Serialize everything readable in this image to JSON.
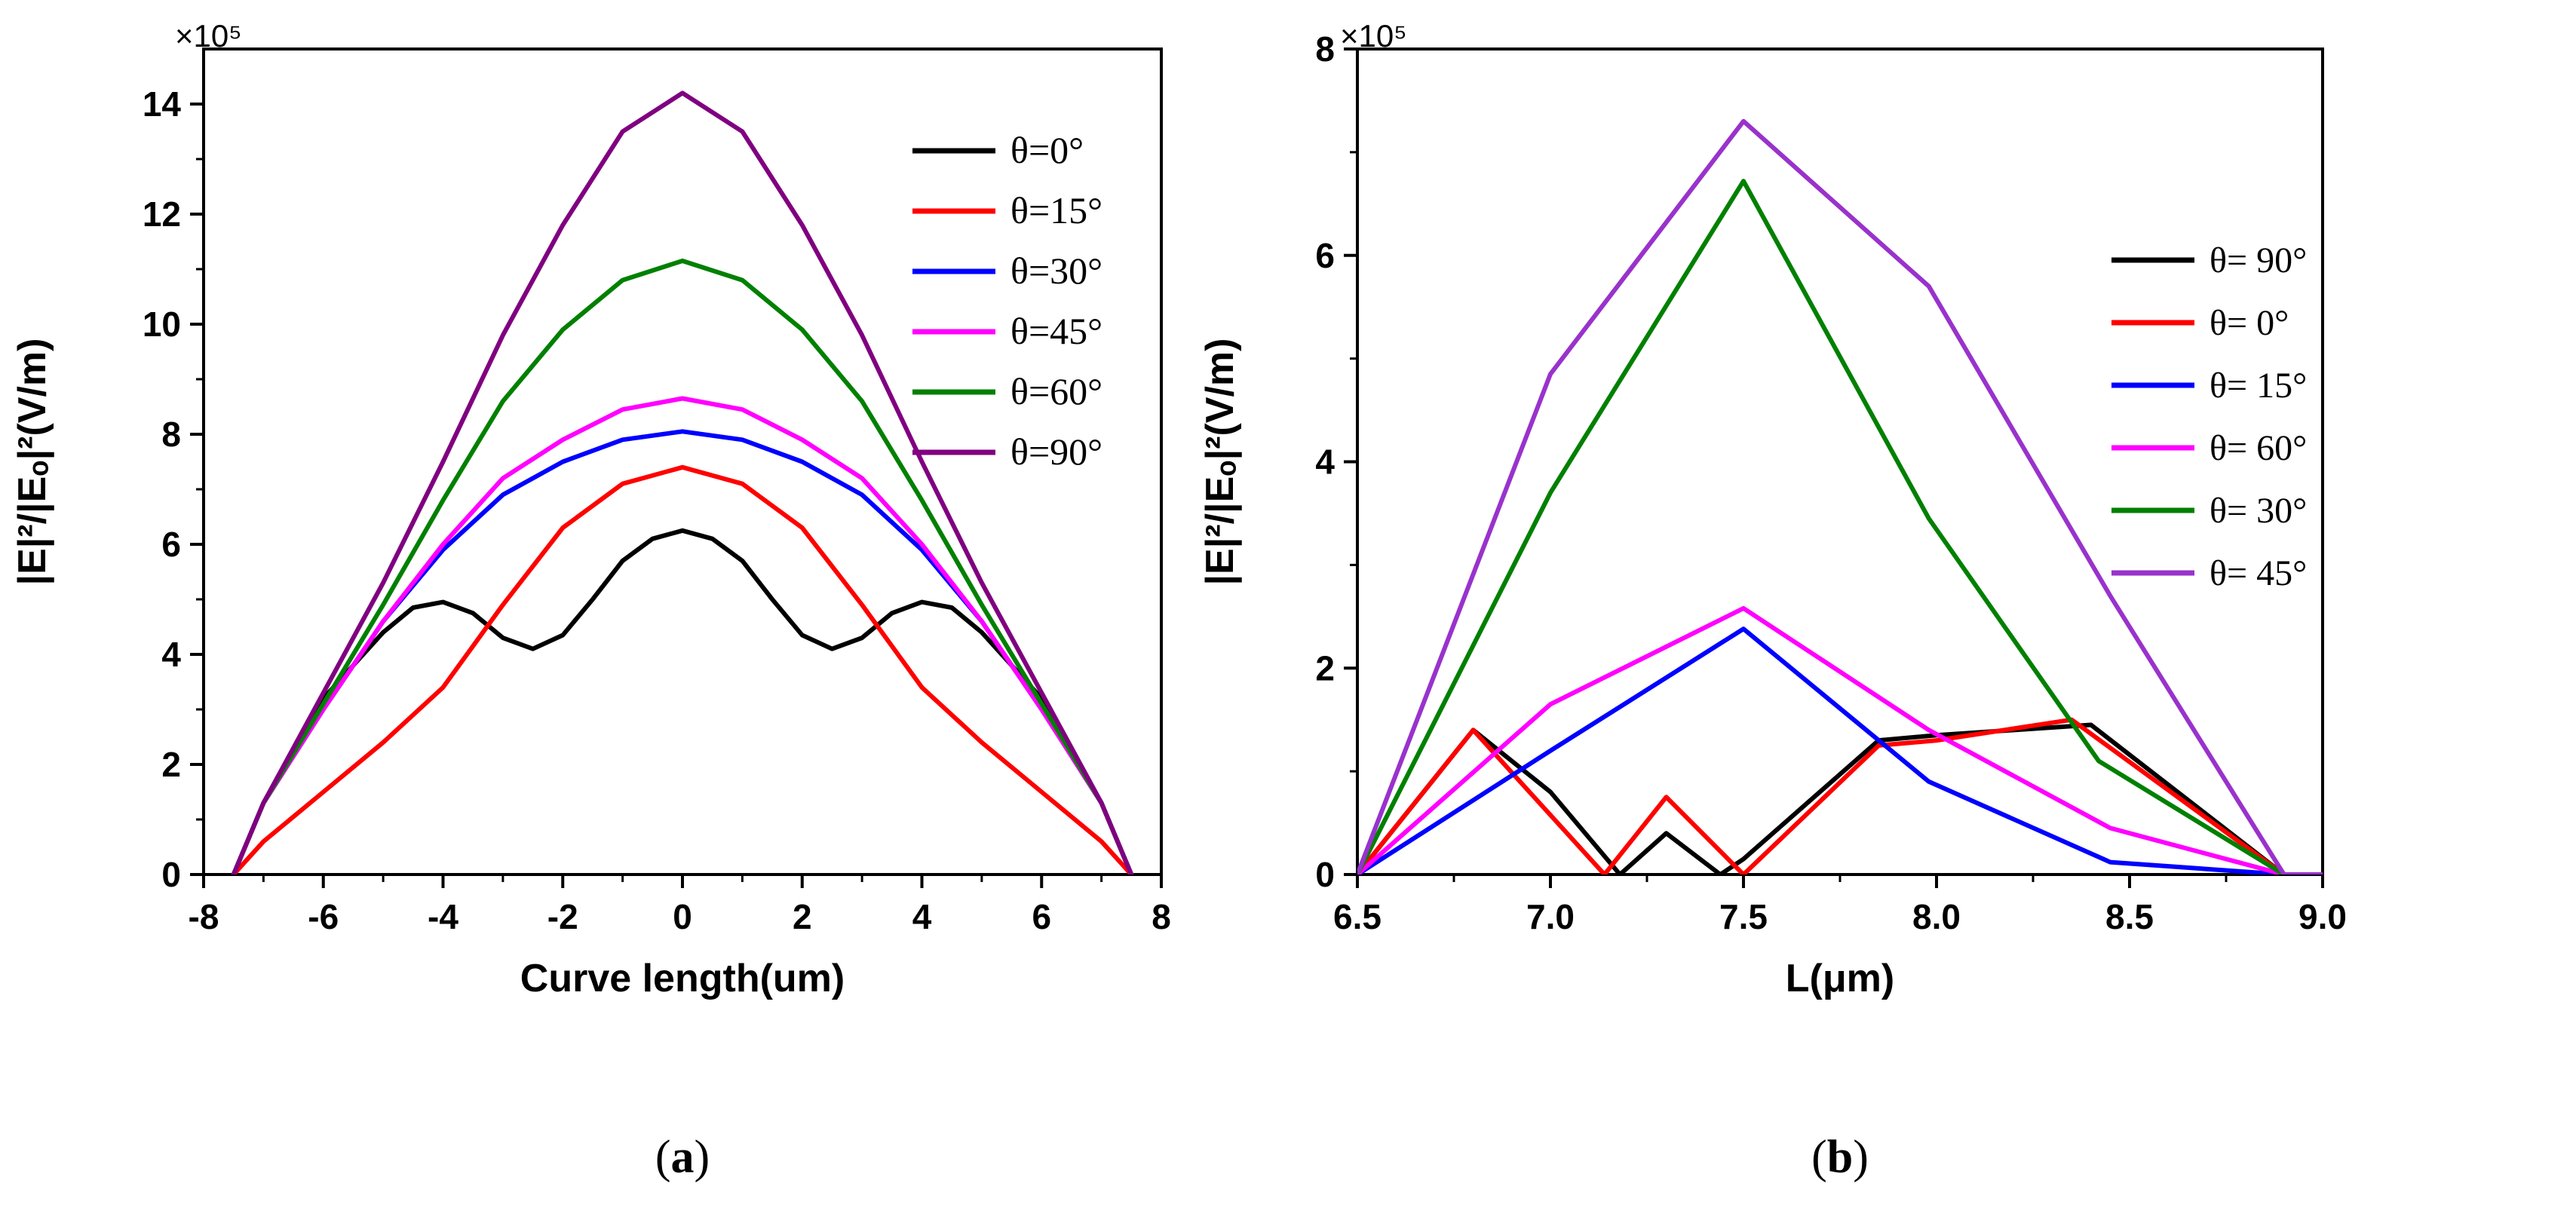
{
  "chart_data": [
    {
      "type": "line",
      "panel_label_open": "(",
      "panel_label": "a",
      "panel_label_close": ")",
      "xlabel": "Curve length(um)",
      "ylabel": "|E|²/|Eₒ|²(V/m)",
      "multiplier": "×10⁵",
      "xlim": [
        -8,
        8
      ],
      "ylim": [
        0,
        15
      ],
      "xticks": [
        -8,
        -6,
        -4,
        -2,
        0,
        2,
        4,
        6,
        8
      ],
      "yticks": [
        0,
        2,
        4,
        6,
        8,
        10,
        12,
        14
      ],
      "legend_position": "top-right",
      "series": [
        {
          "name": "θ=0°",
          "color": "#000000",
          "x": [
            -7.5,
            -7,
            -6,
            -5,
            -4.5,
            -4,
            -3.5,
            -3,
            -2.5,
            -2,
            -1.5,
            -1,
            -0.5,
            0,
            0.5,
            1,
            1.5,
            2,
            2.5,
            3,
            3.5,
            4,
            4.5,
            5,
            6,
            7,
            7.5
          ],
          "y": [
            0,
            1.3,
            3.2,
            4.4,
            4.85,
            4.95,
            4.75,
            4.3,
            4.1,
            4.35,
            5.0,
            5.7,
            6.1,
            6.25,
            6.1,
            5.7,
            5.0,
            4.35,
            4.1,
            4.3,
            4.75,
            4.95,
            4.85,
            4.4,
            3.2,
            1.3,
            0
          ]
        },
        {
          "name": "θ=15°",
          "color": "#ff0000",
          "x": [
            -7.5,
            -7,
            -6,
            -5,
            -4,
            -3,
            -2,
            -1,
            0,
            1,
            2,
            3,
            4,
            5,
            6,
            7,
            7.5
          ],
          "y": [
            0,
            0.6,
            1.5,
            2.4,
            3.4,
            4.9,
            6.3,
            7.1,
            7.4,
            7.1,
            6.3,
            4.9,
            3.4,
            2.4,
            1.5,
            0.6,
            0
          ]
        },
        {
          "name": "θ=30°",
          "color": "#0000ff",
          "x": [
            -7.5,
            -7,
            -6,
            -5,
            -4,
            -3,
            -2,
            -1,
            0,
            1,
            2,
            3,
            4,
            5,
            6,
            7,
            7.5
          ],
          "y": [
            0,
            1.3,
            3.0,
            4.6,
            5.9,
            6.9,
            7.5,
            7.9,
            8.05,
            7.9,
            7.5,
            6.9,
            5.9,
            4.6,
            3.0,
            1.3,
            0
          ]
        },
        {
          "name": "θ=45°",
          "color": "#ff00ff",
          "x": [
            -7.5,
            -7,
            -6,
            -5,
            -4,
            -3,
            -2,
            -1,
            0,
            1,
            2,
            3,
            4,
            5,
            6,
            7,
            7.5
          ],
          "y": [
            0,
            1.3,
            3.0,
            4.6,
            6.0,
            7.2,
            7.9,
            8.45,
            8.65,
            8.45,
            7.9,
            7.2,
            6.0,
            4.6,
            3.0,
            1.3,
            0
          ]
        },
        {
          "name": "θ=60°",
          "color": "#008000",
          "x": [
            -7.5,
            -7,
            -6,
            -5,
            -4,
            -3,
            -2,
            -1,
            0,
            1,
            2,
            3,
            4,
            5,
            6,
            7,
            7.5
          ],
          "y": [
            0,
            1.3,
            3.1,
            4.9,
            6.8,
            8.6,
            9.9,
            10.8,
            11.15,
            10.8,
            9.9,
            8.6,
            6.8,
            4.9,
            3.1,
            1.3,
            0
          ]
        },
        {
          "name": "θ=90°",
          "color": "#800080",
          "x": [
            -7.5,
            -7,
            -6,
            -5,
            -4,
            -3,
            -2,
            -1,
            0,
            1,
            2,
            3,
            4,
            5,
            6,
            7,
            7.5
          ],
          "y": [
            0,
            1.3,
            3.3,
            5.3,
            7.5,
            9.8,
            11.8,
            13.5,
            14.2,
            13.5,
            11.8,
            9.8,
            7.5,
            5.3,
            3.3,
            1.3,
            0
          ]
        }
      ]
    },
    {
      "type": "line",
      "panel_label_open": "(",
      "panel_label": "b",
      "panel_label_close": ")",
      "xlabel": "L(μm)",
      "ylabel": "|E|²/|Eₒ|²(V/m)",
      "multiplier": "×10⁵",
      "xlim": [
        6.5,
        9.0
      ],
      "ylim": [
        0,
        8
      ],
      "xticks": [
        "6.5",
        "7.0",
        "7.5",
        "8.0",
        "8.5",
        "9.0"
      ],
      "yticks": [
        0,
        2,
        4,
        6,
        8
      ],
      "legend_position": "right",
      "series": [
        {
          "name": "θ= 90°",
          "color": "#000000",
          "x": [
            6.5,
            6.8,
            7.0,
            7.18,
            7.3,
            7.44,
            7.5,
            7.85,
            8.0,
            8.4,
            8.9,
            9.0
          ],
          "y": [
            0,
            1.4,
            0.8,
            0.0,
            0.4,
            0.0,
            0.15,
            1.3,
            1.35,
            1.45,
            0,
            0
          ]
        },
        {
          "name": "θ= 0°",
          "color": "#ff0000",
          "x": [
            6.5,
            6.8,
            7.14,
            7.3,
            7.5,
            7.85,
            8.0,
            8.35,
            8.9,
            9.0
          ],
          "y": [
            0,
            1.4,
            0.0,
            0.75,
            0.0,
            1.25,
            1.3,
            1.5,
            0,
            0
          ]
        },
        {
          "name": "θ= 15°",
          "color": "#0000ff",
          "x": [
            6.5,
            7.0,
            7.5,
            7.98,
            8.45,
            8.9,
            9.0
          ],
          "y": [
            0,
            1.2,
            2.38,
            0.9,
            0.12,
            0,
            0
          ]
        },
        {
          "name": "θ= 60°",
          "color": "#ff00ff",
          "x": [
            6.5,
            7.0,
            7.5,
            7.98,
            8.45,
            8.9,
            9.0
          ],
          "y": [
            0,
            1.65,
            2.58,
            1.4,
            0.45,
            0,
            0
          ]
        },
        {
          "name": "θ= 30°",
          "color": "#008000",
          "x": [
            6.5,
            7.0,
            7.5,
            7.98,
            8.42,
            8.9,
            9.0
          ],
          "y": [
            0,
            3.7,
            6.72,
            3.45,
            1.1,
            0,
            0
          ]
        },
        {
          "name": "θ= 45°",
          "color": "#9932cc",
          "x": [
            6.5,
            7.0,
            7.5,
            7.98,
            8.45,
            8.9,
            9.0
          ],
          "y": [
            0,
            4.85,
            7.3,
            5.7,
            2.7,
            0,
            0
          ]
        }
      ]
    }
  ]
}
